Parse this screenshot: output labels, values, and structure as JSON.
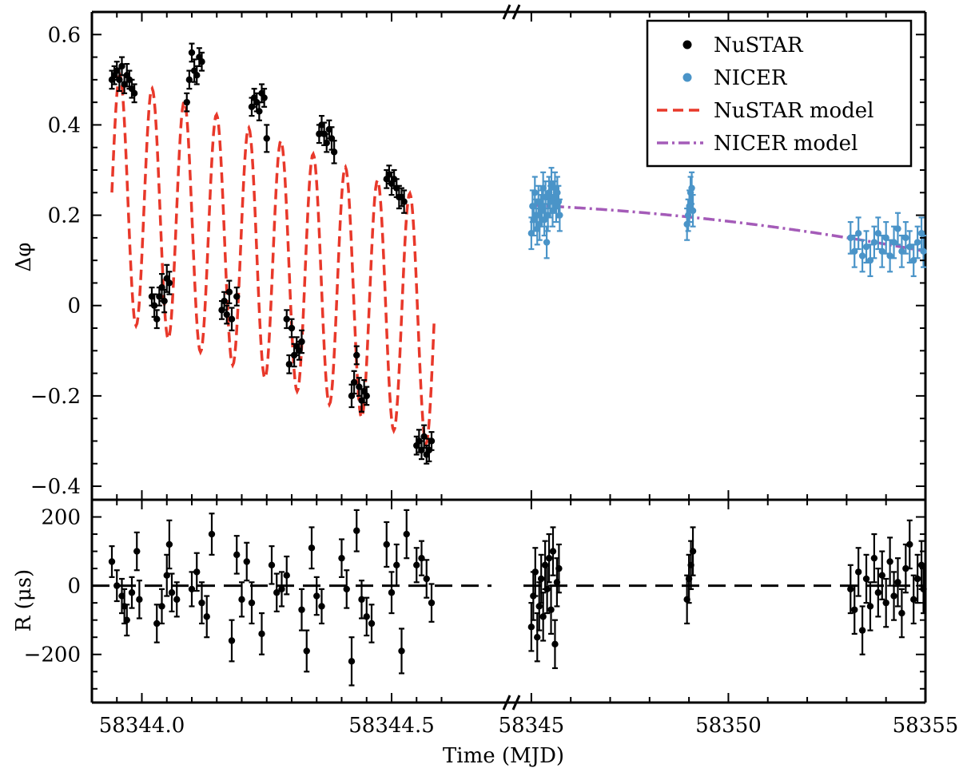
{
  "chart_data": {
    "type": "scatter",
    "xlabel": "Time (MJD)",
    "x_tick_labels": [
      "58344.0",
      "58344.5",
      "58345",
      "58350",
      "58355"
    ],
    "x_ranges": [
      [
        58343.9,
        58344.7
      ],
      [
        58344.8,
        58355.0
      ]
    ],
    "top_panel": {
      "ylabel": "Δφ",
      "ylim": [
        -0.43,
        0.65
      ],
      "y_ticks": [
        0.6,
        0.4,
        0.2,
        0,
        -0.2,
        -0.4
      ],
      "y_tick_labels": [
        "0.6",
        "0.4",
        "0.2",
        "0",
        "−0.2",
        "−0.4"
      ]
    },
    "bottom_panel": {
      "ylabel": "R (μs)",
      "ylim": [
        -340,
        250
      ],
      "y_ticks": [
        200,
        0,
        -200
      ],
      "y_tick_labels": [
        "200",
        "0",
        "−200"
      ]
    },
    "legend": {
      "placement": "top-right",
      "entries": [
        {
          "label": "NuSTAR",
          "style": "marker",
          "color": "#000000"
        },
        {
          "label": "NICER",
          "style": "marker",
          "color": "#4a94c8"
        },
        {
          "label": "NuSTAR model",
          "style": "dashed",
          "color": "#e8382a"
        },
        {
          "label": "NICER model",
          "style": "dashdot",
          "color": "#a45bb8"
        }
      ]
    },
    "series": [
      {
        "name": "NuSTAR",
        "color": "#000000",
        "panel": "top",
        "points": [
          [
            58343.94,
            0.5,
            0.02
          ],
          [
            58343.945,
            0.51,
            0.02
          ],
          [
            58343.95,
            0.52,
            0.02
          ],
          [
            58343.955,
            0.5,
            0.025
          ],
          [
            58343.96,
            0.53,
            0.02
          ],
          [
            58343.965,
            0.49,
            0.02
          ],
          [
            58343.97,
            0.51,
            0.025
          ],
          [
            58343.975,
            0.5,
            0.02
          ],
          [
            58343.98,
            0.48,
            0.02
          ],
          [
            58343.985,
            0.47,
            0.02
          ],
          [
            58344.02,
            0.02,
            0.02
          ],
          [
            58344.025,
            0.0,
            0.025
          ],
          [
            58344.03,
            -0.03,
            0.02
          ],
          [
            58344.035,
            0.02,
            0.02
          ],
          [
            58344.04,
            0.04,
            0.03
          ],
          [
            58344.045,
            0.01,
            0.025
          ],
          [
            58344.05,
            0.06,
            0.03
          ],
          [
            58344.055,
            0.05,
            0.025
          ],
          [
            58344.09,
            0.45,
            0.02
          ],
          [
            58344.095,
            0.5,
            0.02
          ],
          [
            58344.1,
            0.56,
            0.02
          ],
          [
            58344.105,
            0.52,
            0.025
          ],
          [
            58344.11,
            0.51,
            0.02
          ],
          [
            58344.115,
            0.55,
            0.02
          ],
          [
            58344.12,
            0.54,
            0.02
          ],
          [
            58344.16,
            -0.01,
            0.02
          ],
          [
            58344.165,
            0.01,
            0.02
          ],
          [
            58344.17,
            -0.02,
            0.02
          ],
          [
            58344.175,
            0.03,
            0.025
          ],
          [
            58344.18,
            -0.03,
            0.025
          ],
          [
            58344.19,
            0.02,
            0.02
          ],
          [
            58344.22,
            0.44,
            0.02
          ],
          [
            58344.225,
            0.46,
            0.02
          ],
          [
            58344.23,
            0.45,
            0.02
          ],
          [
            58344.235,
            0.43,
            0.02
          ],
          [
            58344.24,
            0.47,
            0.02
          ],
          [
            58344.245,
            0.46,
            0.02
          ],
          [
            58344.25,
            0.37,
            0.03
          ],
          [
            58344.29,
            -0.03,
            0.02
          ],
          [
            58344.295,
            -0.13,
            0.02
          ],
          [
            58344.3,
            -0.05,
            0.02
          ],
          [
            58344.305,
            -0.11,
            0.025
          ],
          [
            58344.31,
            -0.09,
            0.02
          ],
          [
            58344.315,
            -0.1,
            0.02
          ],
          [
            58344.32,
            -0.08,
            0.025
          ],
          [
            58344.355,
            0.38,
            0.02
          ],
          [
            58344.36,
            0.4,
            0.02
          ],
          [
            58344.365,
            0.38,
            0.025
          ],
          [
            58344.37,
            0.36,
            0.02
          ],
          [
            58344.375,
            0.39,
            0.02
          ],
          [
            58344.38,
            0.37,
            0.025
          ],
          [
            58344.385,
            0.34,
            0.025
          ],
          [
            58344.42,
            -0.2,
            0.025
          ],
          [
            58344.425,
            -0.17,
            0.025
          ],
          [
            58344.43,
            -0.11,
            0.02
          ],
          [
            58344.435,
            -0.18,
            0.02
          ],
          [
            58344.44,
            -0.21,
            0.025
          ],
          [
            58344.445,
            -0.19,
            0.025
          ],
          [
            58344.45,
            -0.2,
            0.02
          ],
          [
            58344.49,
            0.28,
            0.02
          ],
          [
            58344.495,
            0.29,
            0.02
          ],
          [
            58344.5,
            0.27,
            0.025
          ],
          [
            58344.505,
            0.28,
            0.02
          ],
          [
            58344.51,
            0.26,
            0.02
          ],
          [
            58344.515,
            0.24,
            0.025
          ],
          [
            58344.52,
            0.24,
            0.02
          ],
          [
            58344.525,
            0.23,
            0.025
          ],
          [
            58344.55,
            -0.31,
            0.02
          ],
          [
            58344.555,
            -0.3,
            0.025
          ],
          [
            58344.56,
            -0.32,
            0.02
          ],
          [
            58344.565,
            -0.29,
            0.025
          ],
          [
            58344.57,
            -0.33,
            0.02
          ],
          [
            58344.575,
            -0.32,
            0.025
          ],
          [
            58344.58,
            -0.3,
            0.02
          ]
        ]
      },
      {
        "name": "NICER",
        "color": "#4a94c8",
        "panel": "top",
        "points": [
          [
            58345.0,
            0.16,
            0.035
          ],
          [
            58345.03,
            0.22,
            0.035
          ],
          [
            58345.06,
            0.19,
            0.035
          ],
          [
            58345.09,
            0.25,
            0.035
          ],
          [
            58345.12,
            0.2,
            0.035
          ],
          [
            58345.15,
            0.17,
            0.035
          ],
          [
            58345.18,
            0.23,
            0.035
          ],
          [
            58345.21,
            0.18,
            0.035
          ],
          [
            58345.24,
            0.21,
            0.035
          ],
          [
            58345.27,
            0.22,
            0.035
          ],
          [
            58345.3,
            0.26,
            0.035
          ],
          [
            58345.33,
            0.19,
            0.035
          ],
          [
            58345.36,
            0.24,
            0.035
          ],
          [
            58345.39,
            0.14,
            0.035
          ],
          [
            58345.42,
            0.2,
            0.035
          ],
          [
            58345.45,
            0.25,
            0.035
          ],
          [
            58345.48,
            0.23,
            0.035
          ],
          [
            58345.51,
            0.27,
            0.035
          ],
          [
            58345.54,
            0.21,
            0.035
          ],
          [
            58345.57,
            0.24,
            0.035
          ],
          [
            58345.6,
            0.26,
            0.035
          ],
          [
            58345.63,
            0.22,
            0.035
          ],
          [
            58345.66,
            0.25,
            0.035
          ],
          [
            58345.69,
            0.23,
            0.035
          ],
          [
            58345.72,
            0.2,
            0.035
          ],
          [
            58348.95,
            0.18,
            0.035
          ],
          [
            58348.98,
            0.2,
            0.035
          ],
          [
            58349.01,
            0.22,
            0.035
          ],
          [
            58349.04,
            0.25,
            0.035
          ],
          [
            58349.07,
            0.26,
            0.035
          ],
          [
            58349.1,
            0.21,
            0.035
          ],
          [
            58353.1,
            0.15,
            0.035
          ],
          [
            58353.2,
            0.12,
            0.035
          ],
          [
            58353.3,
            0.16,
            0.035
          ],
          [
            58353.4,
            0.11,
            0.035
          ],
          [
            58353.5,
            0.13,
            0.035
          ],
          [
            58353.6,
            0.1,
            0.035
          ],
          [
            58353.7,
            0.14,
            0.035
          ],
          [
            58353.8,
            0.16,
            0.035
          ],
          [
            58353.9,
            0.12,
            0.035
          ],
          [
            58354.0,
            0.15,
            0.035
          ],
          [
            58354.1,
            0.11,
            0.035
          ],
          [
            58354.2,
            0.14,
            0.035
          ],
          [
            58354.3,
            0.17,
            0.035
          ],
          [
            58354.4,
            0.12,
            0.035
          ],
          [
            58354.5,
            0.15,
            0.035
          ],
          [
            58354.6,
            0.13,
            0.035
          ],
          [
            58354.7,
            0.1,
            0.035
          ],
          [
            58354.8,
            0.14,
            0.035
          ],
          [
            58354.9,
            0.16,
            0.035
          ],
          [
            58354.95,
            0.12,
            0.035
          ]
        ]
      },
      {
        "name": "NuSTAR residuals",
        "color": "#000000",
        "panel": "bottom",
        "points": [
          [
            58343.94,
            70,
            45
          ],
          [
            58343.95,
            0,
            45
          ],
          [
            58343.96,
            -30,
            50
          ],
          [
            58343.965,
            -60,
            50
          ],
          [
            58343.97,
            -100,
            45
          ],
          [
            58343.98,
            -20,
            45
          ],
          [
            58343.99,
            100,
            55
          ],
          [
            58343.995,
            -40,
            55
          ],
          [
            58344.03,
            -110,
            55
          ],
          [
            58344.04,
            -60,
            50
          ],
          [
            58344.05,
            30,
            60
          ],
          [
            58344.055,
            120,
            70
          ],
          [
            58344.06,
            -20,
            55
          ],
          [
            58344.07,
            -40,
            50
          ],
          [
            58344.1,
            -10,
            50
          ],
          [
            58344.11,
            40,
            55
          ],
          [
            58344.12,
            -50,
            60
          ],
          [
            58344.13,
            -90,
            60
          ],
          [
            58344.14,
            150,
            60
          ],
          [
            58344.18,
            -160,
            60
          ],
          [
            58344.19,
            90,
            55
          ],
          [
            58344.2,
            -40,
            50
          ],
          [
            58344.21,
            70,
            55
          ],
          [
            58344.22,
            -50,
            60
          ],
          [
            58344.24,
            -140,
            60
          ],
          [
            58344.26,
            60,
            55
          ],
          [
            58344.27,
            -20,
            55
          ],
          [
            58344.28,
            -10,
            50
          ],
          [
            58344.29,
            30,
            55
          ],
          [
            58344.32,
            -70,
            60
          ],
          [
            58344.33,
            -190,
            60
          ],
          [
            58344.34,
            110,
            60
          ],
          [
            58344.35,
            -30,
            55
          ],
          [
            58344.36,
            -60,
            50
          ],
          [
            58344.4,
            80,
            55
          ],
          [
            58344.41,
            -10,
            55
          ],
          [
            58344.42,
            -220,
            70
          ],
          [
            58344.43,
            160,
            60
          ],
          [
            58344.44,
            -40,
            55
          ],
          [
            58344.45,
            -90,
            55
          ],
          [
            58344.46,
            -110,
            55
          ],
          [
            58344.49,
            120,
            65
          ],
          [
            58344.5,
            -20,
            60
          ],
          [
            58344.51,
            60,
            60
          ],
          [
            58344.52,
            -190,
            65
          ],
          [
            58344.53,
            150,
            70
          ],
          [
            58344.55,
            60,
            50
          ],
          [
            58344.56,
            80,
            50
          ],
          [
            58344.57,
            20,
            55
          ],
          [
            58344.58,
            -50,
            55
          ]
        ]
      },
      {
        "name": "NICER residuals",
        "color": "#000000",
        "panel": "bottom",
        "points": [
          [
            58345.0,
            -120,
            70
          ],
          [
            58345.05,
            -30,
            70
          ],
          [
            58345.1,
            40,
            70
          ],
          [
            58345.15,
            -150,
            70
          ],
          [
            58345.2,
            -60,
            70
          ],
          [
            58345.25,
            20,
            70
          ],
          [
            58345.3,
            -90,
            70
          ],
          [
            58345.35,
            60,
            70
          ],
          [
            58345.4,
            -10,
            70
          ],
          [
            58345.45,
            80,
            70
          ],
          [
            58345.5,
            -70,
            70
          ],
          [
            58345.55,
            100,
            70
          ],
          [
            58345.6,
            -170,
            70
          ],
          [
            58345.65,
            10,
            70
          ],
          [
            58345.7,
            50,
            70
          ],
          [
            58348.95,
            -40,
            70
          ],
          [
            58349.0,
            20,
            70
          ],
          [
            58349.05,
            60,
            70
          ],
          [
            58349.1,
            100,
            70
          ],
          [
            58353.1,
            -10,
            70
          ],
          [
            58353.2,
            -70,
            70
          ],
          [
            58353.3,
            40,
            70
          ],
          [
            58353.4,
            -130,
            70
          ],
          [
            58353.5,
            20,
            70
          ],
          [
            58353.6,
            -60,
            70
          ],
          [
            58353.7,
            80,
            70
          ],
          [
            58353.8,
            -20,
            70
          ],
          [
            58353.9,
            30,
            70
          ],
          [
            58354.0,
            -50,
            70
          ],
          [
            58354.1,
            70,
            70
          ],
          [
            58354.2,
            -30,
            70
          ],
          [
            58354.3,
            10,
            70
          ],
          [
            58354.4,
            -80,
            70
          ],
          [
            58354.5,
            50,
            70
          ],
          [
            58354.6,
            120,
            70
          ],
          [
            58354.7,
            -40,
            70
          ],
          [
            58354.8,
            20,
            70
          ],
          [
            58354.9,
            60,
            70
          ],
          [
            58354.95,
            -10,
            70
          ]
        ]
      }
    ],
    "models": [
      {
        "name": "NuSTAR model",
        "color": "#e8382a",
        "panel": "top",
        "function": "sinusoid",
        "params": {
          "t0": 58343.94,
          "t1": 58344.585,
          "offset": 0.247,
          "drift_per_day": -0.45,
          "amplitude": 0.27,
          "period_days": 0.0645
        }
      },
      {
        "name": "NICER model",
        "color": "#a45bb8",
        "panel": "top",
        "function": "quadratic",
        "params": {
          "t0": 58345.0,
          "t1": 58355.0,
          "a": 0.222,
          "b": -0.004,
          "c": -0.00062
        }
      }
    ]
  }
}
